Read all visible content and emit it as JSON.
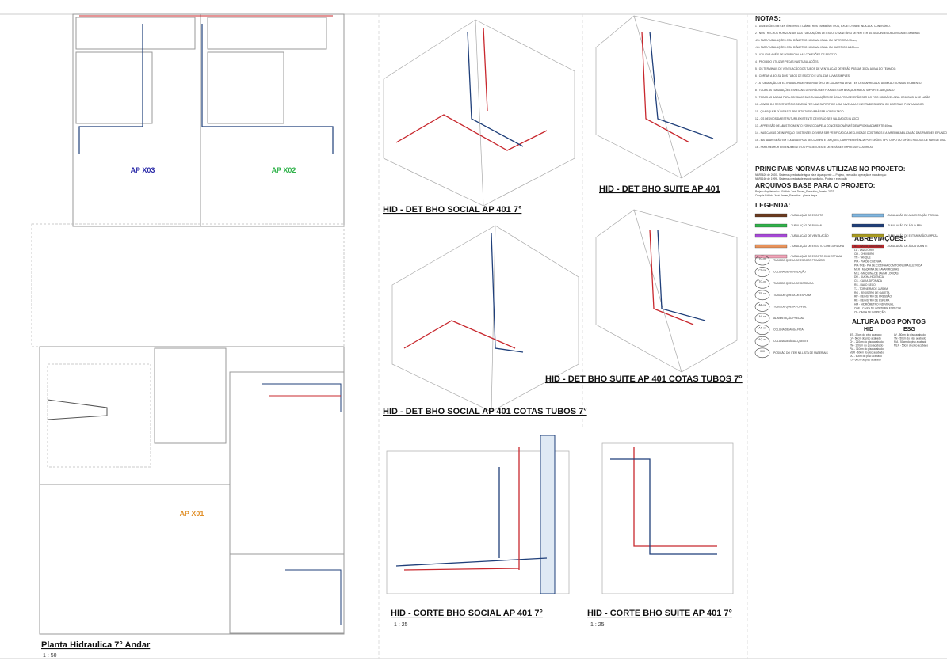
{
  "plan": {
    "rooms": [
      "AP X03",
      "AP X02",
      "AP X01"
    ],
    "title": "Planta Hidraulica 7° Andar",
    "scale": "1 : 50"
  },
  "views": [
    {
      "title": "HID - DET BHO SOCIAL AP 401 7°"
    },
    {
      "title": "HID - DET BHO SUITE AP 401"
    },
    {
      "title": "HID - DET BHO SOCIAL AP 401   COTAS TUBOS 7°"
    },
    {
      "title": "HID - DET BHO SUITE AP 401   COTAS TUBOS 7°"
    },
    {
      "title": "HID - CORTE BHO SOCIAL AP 401 7°",
      "scale": "1 : 25"
    },
    {
      "title": "HID - CORTE BHO SUITE AP 401 7°",
      "scale": "1 : 25"
    }
  ],
  "notes": {
    "heading": "NOTAS:",
    "items": [
      "1 - DIMENSÕES EM CENTÍMETROS E DIÂMETROS EM MILÍMETROS, EXCETO ONDE INDICADO CONTRÁRIO.",
      "2 - NOS TRECHOS HORIZONTAIS DAS TUBULAÇÕES DE ESGOTO SANITÁRIO DEVEM TER AS SEGUINTES DECLIVIDADES MÍNIMAS:",
      "-2% PARA TUBULAÇÕES COM DIÂMETRO NOMINAL IGUAL OU INFERIOR A 75mm;",
      "-1% PARA TUBULAÇÕES COM DIÂMETRO NOMINAL IGUAL OU SUPERIOR A 100mm",
      "3 - UTILIZAR ANÉIS DE BORRACHA NAS CONEXÕES DE ESGOTO.",
      "4 - PROIBIDO UTILIZAR PEÇAS NAS TUBULAÇÕES.",
      "5 - OS TERMINAIS DE VENTILAÇÃO DOS TUBOS DE VENTILAÇÃO DEVERÃO PASSAR 30CM ACIMA DO TELHADO.",
      "6 - CORTAR A BOLSA DOS TUBOS DE ESGOTO E UTILIZAR LUVAS SIMPLES",
      "7 - A TUBULAÇÃO DE EXTRAVASOR DE RESERVATÓRIO DE ÁGUA FRIA DEVE TER DESCARREGADO ACIMA AO DO ABASTECIMENTO.",
      "8 - TODAS AS TUBULAÇÕES ESPECIAIS DEVERÃO SER FIXADAS COM BRAÇADEIRA OU SUPORTE ADEQUADO",
      "9 - TODAS AS SAÍDAS PARA CONSUMO DAS TUBULAÇÕES DE ÁGUA FRIA DEVERÃO SER DO TIPO SOLDÁVEL AZUL COM BUCHA DE LATÃO",
      "10 - A BASE DO RESERVATÓRIO DEVERÁ TER UMA SUPERFÍCIE LISA, NIVELADA E ISENTA DE SUJEIRA OU MATERIAIS PONTIAGUDOS",
      "11 - QUAISQUER DÚVIDAS O PROJETISTA DEVERÁ SER CONSULTADO",
      "12 - OS DESVIOS DA ESTRUTURA EXISTENTE DEVERÃO SER VALIDADOS IN LOCO",
      "13 - A PRESSÃO DE ABASTECIMENTO FORNECIDA PELA CONCESSIONÁRIA É DE APROXIMADAMENTE 40mca",
      "14 - NAS CAIXAS DE INSPEÇÃO EXISTENTES DEVERÁ SER VERIFICADO A DECLIVIDADE DOS TUBOS E A IMPERMEABILIZAÇÃO DAS PAREDES E FUNDO.",
      "15 - INSTALAR SIFÃO EM TODAS AS PIAS DE COZINHA E TANQUES, DAR PREFERÊNCIA POR SIFÕES TIPO COPO OU SIFÕES RÍGIDOS DE PAREDE LISA.",
      "16 - PARA MELHOR ENTENDIMENTO DO PROJETO ESTE DEVERÁ SER IMPRESSO COLORIDO"
    ]
  },
  "norms": {
    "heading": "PRINCIPAIS NORMAS UTILIZAS NO PROJETO:",
    "items": [
      "NBR5626 de 2020 - Sistemas prediais de água fria e água quente — Projeto, execução, operação e manutenção",
      "NBR8160 de 1999 - Sistemas prediais de esgoto sanitário - Projeto e execução"
    ]
  },
  "base_files": {
    "heading": "ARQUIVOS BASE PARA O PROJETO:",
    "items": [
      "Projeto Arquitetonico - Edificio José Dezan_Executivo_Janeiro 2022",
      "Croquis Edificio José Dezan_Executivo - planta limpa"
    ]
  },
  "legend": {
    "heading": "LEGENDA:",
    "lines": [
      {
        "label": "-TUBULAÇÃO DE ESGOTO",
        "color": "#6b3a1e"
      },
      {
        "label": "-TUBULAÇÃO DE PLUVIAL",
        "color": "#2fb24a"
      },
      {
        "label": "-TUBULAÇÃO DE VENTILAÇÃO",
        "color": "#a648d6"
      },
      {
        "label": "-TUBULAÇÃO DE ESGOTO COM GORDURA",
        "color": "#e8925a"
      },
      {
        "label": "-TUBULAÇÃO DE ESGOTO COM ESPUMA",
        "color": "#f2a3b8"
      },
      {
        "label": "-TUBULAÇÃO DE ALIMENTAÇÃO PREDIAL",
        "color": "#7fb6e0"
      },
      {
        "label": "-TUBULAÇÃO DE ÁGUA FRIA",
        "color": "#1f3f7a"
      },
      {
        "label": "-TUBULAÇÃO DE EXTRAVASÃO/LIMPEZA",
        "color": "#a89a20"
      },
      {
        "label": "-TUBULAÇÃO DE ÁGUA QUENTE",
        "color": "#c8282e"
      }
    ],
    "symbols": [
      {
        "code": "TQ-xx",
        "label": "-TUBO DE QUEDA DE ESGOTO PRIMÁRIO"
      },
      {
        "code": "CV-xx",
        "label": "-COLUNA DE VENTILAÇÃO"
      },
      {
        "code": "TG-xx",
        "label": "-TUBO DE QUEDA DE GORDURA"
      },
      {
        "code": "TE-xx",
        "label": "-TUBO DE QUEDA DE ESPUMA"
      },
      {
        "code": "AP-xx",
        "label": "-TUBO DE QUEDA PLUVIAL"
      },
      {
        "code": "AL-xx",
        "label": "-ALIMENTAÇÃO PREDIAL"
      },
      {
        "code": "AF-xx",
        "label": "-COLUNA DE ÁGUA FRIA"
      },
      {
        "code": "AQ-xx",
        "label": "-COLUNA DE ÁGUA QUENTE"
      },
      {
        "code": "000",
        "label": "-POSIÇÃO DO ITEM NA LISTA DE MATERIAIS"
      }
    ]
  },
  "abbreviations": {
    "heading": "ABREVIAÇÕES:",
    "items": [
      "BS - BACIA SANITÁRIA",
      "LV - LAVATÓRIO",
      "CH - CHUVEIRO",
      "TN - TANQUE",
      "PIA - PIA DE COZINHA",
      "PIA-TRE - PIA DE COZINHA COM TORNEIRA ELÉTRICA",
      "MLR - MÁQUINA DE LAVAR ROUPAS",
      "MLL - MÁQUINA DE LAVAR LOUÇAS",
      "DU - DUCHA HIGIÊNICA",
      "CS - CAIXA SIFONADA",
      "RS - RALO SECO",
      "TJ - TORNEIRA DE JARDIM",
      "RG - REGISTRO DE GAVETA",
      "RP - REGISTRO DE PRESSÃO",
      "RE - REGISTRO DE ESFERA",
      "HM - HIDRÔMETRO INDIVIDUAL",
      "CGE - CAIXA DE GORDURA ESPECIAL",
      "CI - CAIXA DE INSPEÇÃO"
    ]
  },
  "heights": {
    "heading": "ALTURA DOS PONTOS",
    "hid": {
      "heading": "HID",
      "items": [
        "BS - 20cm do piso acabado",
        "LV - 60cm do piso acabado",
        "CH - 210cm do piso acabado",
        "TN - 120cm do piso acabado",
        "PIA - 110cm do piso acabado",
        "MLR - 60cm do piso acabado",
        "DU - 60cm do piso acabado",
        "TJ - 60cm do piso acabado"
      ]
    },
    "esg": {
      "heading": "ESG",
      "items": [
        "LV - 50cm do piso acabado",
        "TN - 50cm do piso acabado",
        "PIA - 50cm do piso acabado",
        "MLR - 50cm do piso acabado"
      ]
    }
  }
}
